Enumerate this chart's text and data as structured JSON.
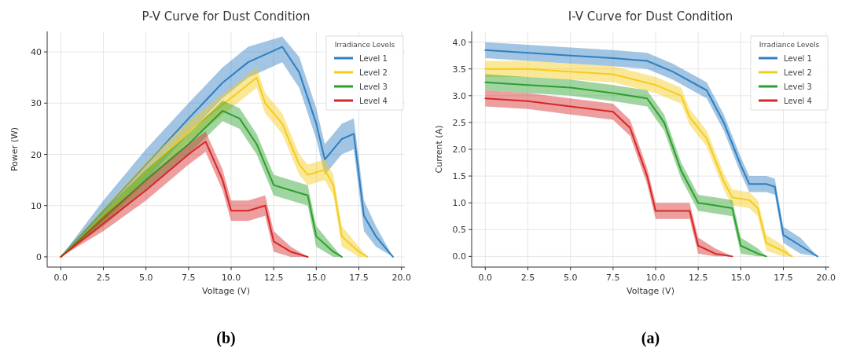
{
  "chart_data": [
    {
      "type": "line",
      "title": "P-V Curve for Dust Condition",
      "xlabel": "Voltage (V)",
      "ylabel": "Power (W)",
      "legend_title": "Irradiance Levels",
      "legend": "top right",
      "grid": true,
      "marker": "none",
      "line_style": "solid",
      "xlim": [
        -0.8,
        20.2
      ],
      "xticks": [
        {
          "value": 0,
          "label": "0.0"
        },
        {
          "value": 2.5,
          "label": "2.5"
        },
        {
          "value": 5,
          "label": "5.0"
        },
        {
          "value": 7.5,
          "label": "7.5"
        },
        {
          "value": 10,
          "label": "10.0"
        },
        {
          "value": 12.5,
          "label": "12.5"
        },
        {
          "value": 15,
          "label": "15.0"
        },
        {
          "value": 17.5,
          "label": "17.5"
        },
        {
          "value": 20,
          "label": "20.0"
        }
      ],
      "ylim": [
        -2,
        44
      ],
      "yticks": [
        0,
        10,
        20,
        30,
        40
      ],
      "annotations": [
        "(b)"
      ],
      "series": [
        {
          "name": "Level 1",
          "color": "#2f7fc1",
          "x": [
            0,
            2.5,
            5,
            7.5,
            9.5,
            11,
            13,
            14,
            15,
            15.5,
            16.5,
            17.2,
            17.8,
            18.5,
            19.5
          ],
          "values": [
            0,
            9,
            18,
            27,
            34,
            38,
            41,
            36,
            26,
            19,
            23,
            24,
            8,
            4,
            0
          ],
          "lower": [
            0,
            7,
            15,
            24,
            31,
            35,
            38,
            33,
            23,
            16,
            20,
            21,
            5,
            2,
            0
          ],
          "upper": [
            0,
            11,
            21,
            30,
            37,
            41,
            43,
            39,
            29,
            22,
            26,
            27,
            11,
            6,
            0
          ]
        },
        {
          "name": "Level 2",
          "color": "#f5cc1a",
          "x": [
            0,
            2.5,
            5,
            7.5,
            10,
            11.5,
            12,
            13,
            14,
            14.5,
            15.5,
            16,
            16.5,
            17.5,
            18
          ],
          "values": [
            0,
            8,
            16.5,
            24.5,
            31,
            35,
            30,
            26,
            18,
            16,
            17,
            14,
            4,
            1,
            0
          ],
          "lower": [
            0,
            6.5,
            14.5,
            22.5,
            29,
            33,
            28,
            24,
            16,
            14,
            15,
            12,
            2,
            0,
            0
          ],
          "upper": [
            0,
            9.5,
            18.5,
            26.5,
            33,
            37,
            32,
            28,
            20,
            18,
            19,
            16,
            6,
            2,
            0
          ]
        },
        {
          "name": "Level 3",
          "color": "#2ca02c",
          "x": [
            0,
            2.5,
            5,
            7.5,
            9.5,
            10.5,
            11.5,
            12.5,
            13.5,
            14.5,
            15,
            16,
            16.5
          ],
          "values": [
            0,
            7.5,
            15,
            22,
            28.5,
            27,
            22,
            14,
            13,
            12,
            4,
            1,
            0
          ],
          "lower": [
            0,
            6,
            13,
            20,
            26.5,
            25,
            20,
            12,
            11,
            10,
            2,
            0,
            0
          ],
          "upper": [
            0,
            9,
            17,
            24,
            30.5,
            29,
            24,
            16,
            15,
            14,
            6,
            2,
            0
          ]
        },
        {
          "name": "Level 4",
          "color": "#d62728",
          "x": [
            0,
            2.5,
            5,
            7.5,
            8.5,
            9.5,
            10,
            11,
            12,
            12.5,
            13.5,
            14.5
          ],
          "values": [
            0,
            6.5,
            13,
            20,
            22.5,
            15,
            9,
            9,
            10,
            3,
            1,
            0
          ],
          "lower": [
            0,
            5,
            11,
            18,
            20.5,
            13,
            7,
            7,
            8,
            1,
            0,
            0
          ],
          "upper": [
            0,
            8,
            15,
            22,
            24.5,
            17,
            11,
            11,
            12,
            5,
            2,
            0
          ]
        }
      ]
    },
    {
      "type": "line",
      "title": "I-V Curve for Dust Condition",
      "xlabel": "Voltage (V)",
      "ylabel": "Current (A)",
      "legend_title": "Irradiance Levels",
      "legend": "top right",
      "grid": true,
      "marker": "none",
      "line_style": "solid",
      "xlim": [
        -0.8,
        20.2
      ],
      "xticks": [
        {
          "value": 0,
          "label": "0.0"
        },
        {
          "value": 2.5,
          "label": "2.5"
        },
        {
          "value": 5,
          "label": "5.0"
        },
        {
          "value": 7.5,
          "label": "7.5"
        },
        {
          "value": 10,
          "label": "10.0"
        },
        {
          "value": 12.5,
          "label": "12.5"
        },
        {
          "value": 15,
          "label": "15.0"
        },
        {
          "value": 17.5,
          "label": "17.5"
        },
        {
          "value": 20,
          "label": "20.0"
        }
      ],
      "ylim": [
        -0.2,
        4.2
      ],
      "yticks": [
        {
          "value": 0,
          "label": "0.0"
        },
        {
          "value": 0.5,
          "label": "0.5"
        },
        {
          "value": 1,
          "label": "1.0"
        },
        {
          "value": 1.5,
          "label": "1.5"
        },
        {
          "value": 2,
          "label": "2.0"
        },
        {
          "value": 2.5,
          "label": "2.5"
        },
        {
          "value": 3,
          "label": "3.0"
        },
        {
          "value": 3.5,
          "label": "3.5"
        },
        {
          "value": 4,
          "label": "4.0"
        }
      ],
      "annotations": [
        "(a)"
      ],
      "series": [
        {
          "name": "Level 1",
          "color": "#2f7fc1",
          "x": [
            0,
            2.5,
            5,
            7.5,
            9.5,
            11,
            13,
            14,
            15,
            15.5,
            16.5,
            17,
            17.5,
            18.5,
            19.5
          ],
          "values": [
            3.85,
            3.8,
            3.75,
            3.7,
            3.65,
            3.45,
            3.1,
            2.5,
            1.7,
            1.35,
            1.35,
            1.3,
            0.4,
            0.2,
            0
          ],
          "lower": [
            3.7,
            3.65,
            3.6,
            3.55,
            3.5,
            3.3,
            2.95,
            2.35,
            1.55,
            1.2,
            1.2,
            1.15,
            0.25,
            0.05,
            0
          ],
          "upper": [
            4,
            3.95,
            3.9,
            3.85,
            3.8,
            3.6,
            3.25,
            2.65,
            1.85,
            1.5,
            1.5,
            1.45,
            0.55,
            0.35,
            0
          ]
        },
        {
          "name": "Level 2",
          "color": "#f5cc1a",
          "x": [
            0,
            2.5,
            5,
            7.5,
            10,
            11.5,
            12,
            13,
            14,
            14.5,
            15.5,
            16,
            16.5,
            17.5,
            18
          ],
          "values": [
            3.5,
            3.5,
            3.45,
            3.4,
            3.2,
            3.0,
            2.6,
            2.2,
            1.4,
            1.1,
            1.05,
            0.9,
            0.25,
            0.1,
            0
          ],
          "lower": [
            3.35,
            3.35,
            3.3,
            3.25,
            3.05,
            2.85,
            2.45,
            2.05,
            1.25,
            0.95,
            0.9,
            0.75,
            0.1,
            0,
            0
          ],
          "upper": [
            3.65,
            3.65,
            3.6,
            3.55,
            3.35,
            3.15,
            2.75,
            2.35,
            1.55,
            1.25,
            1.2,
            1.05,
            0.4,
            0.2,
            0
          ]
        },
        {
          "name": "Level 3",
          "color": "#2ca02c",
          "x": [
            0,
            2.5,
            5,
            7.5,
            9.5,
            10.5,
            11.5,
            12.5,
            13.5,
            14.5,
            15,
            16,
            16.5
          ],
          "values": [
            3.25,
            3.2,
            3.15,
            3.05,
            2.95,
            2.5,
            1.6,
            1.0,
            0.95,
            0.9,
            0.2,
            0.05,
            0
          ],
          "lower": [
            3.1,
            3.05,
            3,
            2.9,
            2.8,
            2.35,
            1.45,
            0.85,
            0.8,
            0.75,
            0.05,
            0,
            0
          ],
          "upper": [
            3.4,
            3.35,
            3.3,
            3.2,
            3.1,
            2.65,
            1.75,
            1.15,
            1.1,
            1.05,
            0.35,
            0.15,
            0
          ]
        },
        {
          "name": "Level 4",
          "color": "#d62728",
          "x": [
            0,
            2.5,
            5,
            7.5,
            8.5,
            9.5,
            10,
            11,
            12,
            12.5,
            13.5,
            14.5
          ],
          "values": [
            2.95,
            2.9,
            2.8,
            2.7,
            2.4,
            1.5,
            0.85,
            0.85,
            0.85,
            0.2,
            0.05,
            0
          ],
          "lower": [
            2.8,
            2.75,
            2.65,
            2.55,
            2.25,
            1.35,
            0.7,
            0.7,
            0.7,
            0.05,
            0,
            0
          ],
          "upper": [
            3.1,
            3.05,
            2.95,
            2.85,
            2.55,
            1.65,
            1,
            1,
            1,
            0.35,
            0.15,
            0
          ]
        }
      ]
    }
  ]
}
